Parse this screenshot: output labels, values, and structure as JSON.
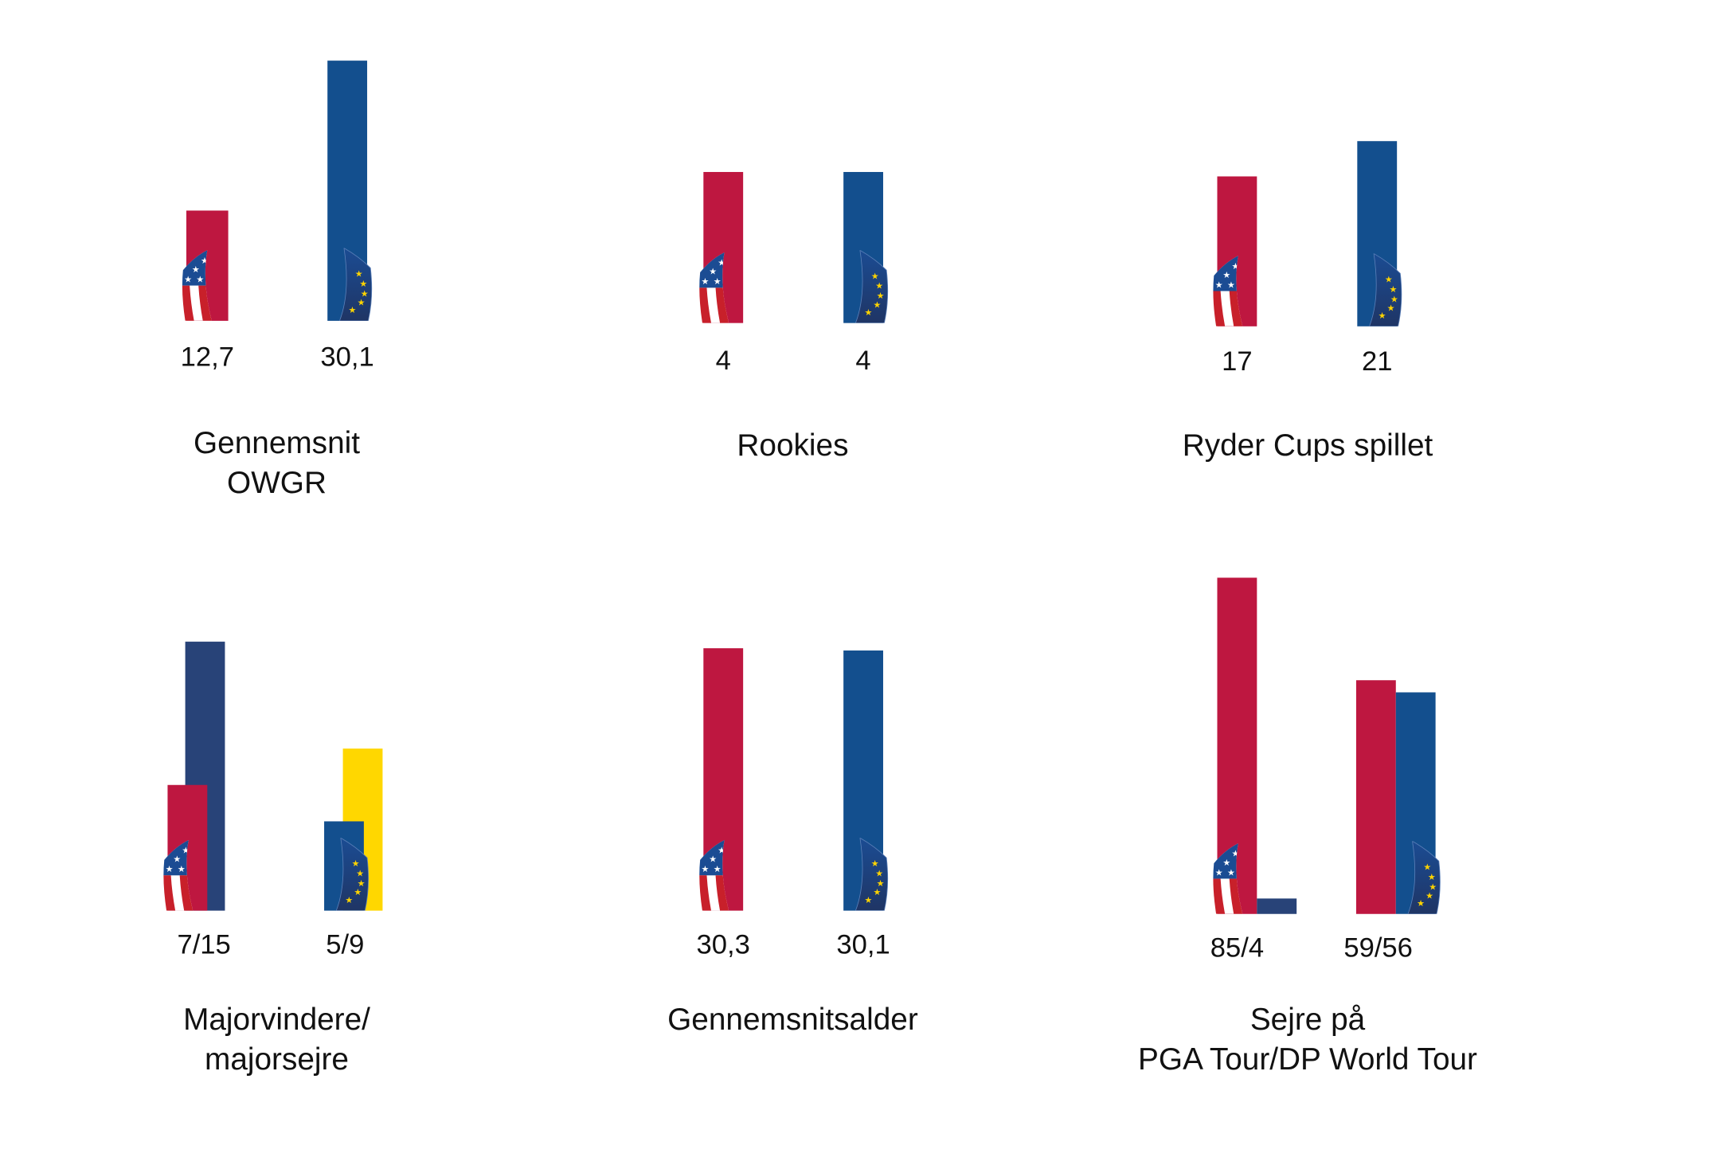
{
  "colors": {
    "usa": "#BE1740",
    "europe": "#134F8E",
    "navy": "#284378",
    "yellow": "#FFD700"
  },
  "chart_data": [
    {
      "type": "bar",
      "title": [
        "Gennemsnit",
        "OWGR"
      ],
      "labels": [
        "12,7",
        "30,1"
      ],
      "series": [
        {
          "name": "USA",
          "value": 12.7,
          "color": "usa"
        },
        {
          "name": "Europa",
          "value": 30.1,
          "color": "europe"
        }
      ]
    },
    {
      "type": "bar",
      "title": [
        "Rookies"
      ],
      "labels": [
        "4",
        "4"
      ],
      "series": [
        {
          "name": "USA",
          "value": 4,
          "color": "usa"
        },
        {
          "name": "Europa",
          "value": 4,
          "color": "europe"
        }
      ]
    },
    {
      "type": "bar",
      "title": [
        "Ryder Cups spillet"
      ],
      "labels": [
        "17",
        "21"
      ],
      "series": [
        {
          "name": "USA",
          "value": 17,
          "color": "usa"
        },
        {
          "name": "Europa",
          "value": 21,
          "color": "europe"
        }
      ]
    },
    {
      "type": "bar",
      "title": [
        "Majorvindere/",
        "majorsejre"
      ],
      "labels": [
        "7/15",
        "5/9"
      ],
      "series": [
        {
          "name": "USA majorvindere",
          "value": 7,
          "color": "usa"
        },
        {
          "name": "USA majorsejre",
          "value": 15,
          "color": "navy"
        },
        {
          "name": "Europa majorvindere",
          "value": 5,
          "color": "europe"
        },
        {
          "name": "Europa majorsejre",
          "value": 9,
          "color": "yellow"
        }
      ]
    },
    {
      "type": "bar",
      "title": [
        "Gennemsnitsalder"
      ],
      "labels": [
        "30,3",
        "30,1"
      ],
      "series": [
        {
          "name": "USA",
          "value": 30.3,
          "color": "usa"
        },
        {
          "name": "Europa",
          "value": 30.1,
          "color": "europe"
        }
      ]
    },
    {
      "type": "bar",
      "title": [
        "Sejre på",
        "PGA Tour/DP World Tour"
      ],
      "labels": [
        "85/4",
        "59/56"
      ],
      "series": [
        {
          "name": "USA PGA Tour",
          "value": 85,
          "color": "usa"
        },
        {
          "name": "USA DP World Tour",
          "value": 4,
          "color": "navy"
        },
        {
          "name": "Europa PGA Tour",
          "value": 59,
          "color": "usa"
        },
        {
          "name": "Europa DP World Tour",
          "value": 56,
          "color": "europe"
        }
      ]
    }
  ]
}
